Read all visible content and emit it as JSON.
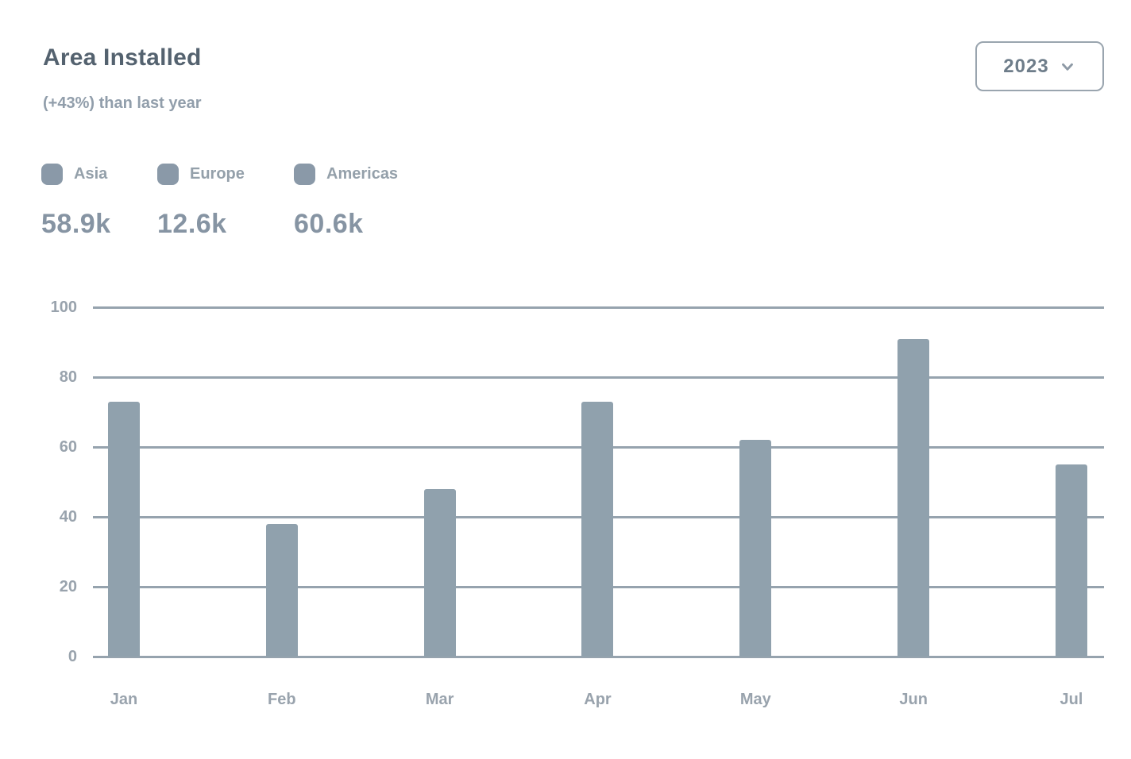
{
  "card": {
    "title": "Area Installed",
    "subtitle": "(+43%) than last year"
  },
  "year_selector": {
    "label": "2023",
    "icon": "chevron-down-icon"
  },
  "legend": {
    "items": [
      {
        "label": "Asia",
        "total": "58.9k"
      },
      {
        "label": "Europe",
        "total": "12.6k"
      },
      {
        "label": "Americas",
        "total": "60.6k"
      }
    ]
  },
  "colors": {
    "bar": "#90a1ad",
    "grid": "#96a3ae",
    "title": "#54626f",
    "muted": "#919eab",
    "total": "#8694a3",
    "legend_marker": "#8a99a8",
    "button_border": "#9aa5af"
  },
  "chart_data": {
    "type": "bar",
    "title": "Area Installed",
    "subtitle": "(+43%) than last year",
    "categories": [
      "Jan",
      "Feb",
      "Mar",
      "Apr",
      "May",
      "Jun",
      "Jul"
    ],
    "values": [
      73,
      38,
      48,
      73,
      62,
      91,
      55
    ],
    "series_name": "Area installed",
    "xlabel": "",
    "ylabel": "",
    "ylim": [
      0,
      100
    ],
    "yticks": [
      0,
      20,
      40,
      60,
      80,
      100
    ],
    "grid": true,
    "legend_position": "top-left",
    "legend_entries": [
      "Asia",
      "Europe",
      "Americas"
    ]
  }
}
